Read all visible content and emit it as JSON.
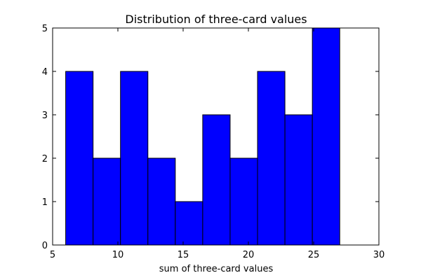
{
  "chart_data": {
    "type": "bar",
    "title": "Distribution of three-card values",
    "xlabel": "sum of three-card values",
    "ylabel": "",
    "xlim": [
      5,
      30
    ],
    "ylim": [
      0,
      5
    ],
    "bin_edges": [
      6,
      8.1,
      10.2,
      12.3,
      14.4,
      16.5,
      18.6,
      20.7,
      22.8,
      24.9,
      27
    ],
    "values": [
      4,
      2,
      4,
      2,
      1,
      3,
      2,
      4,
      3,
      5
    ],
    "xticks": [
      "5",
      "10",
      "15",
      "20",
      "25",
      "30"
    ],
    "yticks": [
      "0",
      "1",
      "2",
      "3",
      "4",
      "5"
    ],
    "bar_color": "#0000ff",
    "grid": false,
    "legend": "none"
  }
}
